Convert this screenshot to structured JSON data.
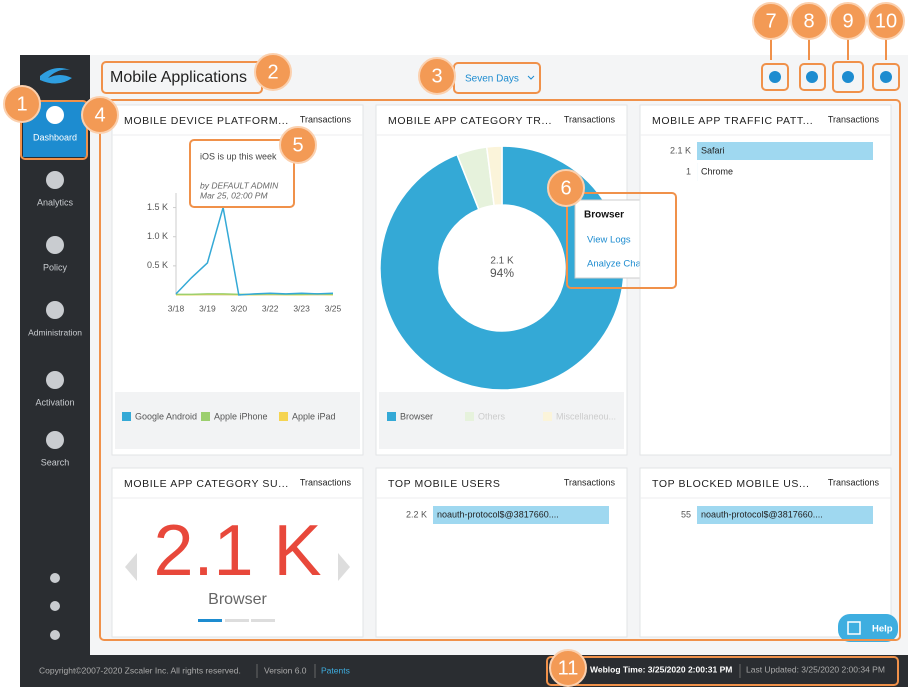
{
  "sidebar": {
    "items": [
      "Dashboard",
      "Analytics",
      "Policy",
      "Administration",
      "Activation",
      "Search"
    ]
  },
  "header": {
    "title": "Mobile Applications",
    "range": "Seven Days"
  },
  "callouts": [
    "1",
    "2",
    "3",
    "4",
    "5",
    "6",
    "7",
    "8",
    "9",
    "10",
    "11"
  ],
  "panels": [
    {
      "title": "MOBILE DEVICE PLATFORM...",
      "metric": "Transactions",
      "note": {
        "text": "iOS is up this week",
        "author": "by DEFAULT ADMIN",
        "time": "Mar 25, 02:00 PM"
      },
      "chart_data": {
        "type": "line",
        "categories": [
          "3/18",
          null,
          "3/19",
          null,
          "3/20",
          null,
          "3/22",
          null,
          "3/23",
          null,
          "3/25"
        ],
        "ylim": [
          0,
          1750
        ],
        "yticks": [
          {
            "value": 500,
            "label": "0.5 K"
          },
          {
            "value": 1000,
            "label": "1.0 K"
          },
          {
            "value": 1500,
            "label": "1.5 K"
          }
        ],
        "series": [
          {
            "name": "Google Android",
            "color": "#34a9d6",
            "values": [
              20,
              300,
              550,
              1500,
              0,
              20,
              30,
              20,
              30,
              20,
              30
            ]
          },
          {
            "name": "Apple iPhone",
            "color": "#9ccf6e",
            "values": [
              10,
              10,
              20,
              20,
              10,
              10,
              20,
              10,
              10,
              20,
              10
            ]
          },
          {
            "name": "Apple iPad",
            "color": "#f5d451",
            "values": [
              5,
              5,
              10,
              10,
              5,
              5,
              10,
              5,
              5,
              10,
              5
            ]
          }
        ]
      }
    },
    {
      "title": "MOBILE APP CATEGORY TR...",
      "metric": "Transactions",
      "chart_data": {
        "type": "donut",
        "categories": [
          "Browser",
          "Others",
          "Miscellaneou..."
        ],
        "values": [
          94,
          4,
          2
        ],
        "colors": [
          "#34a9d6",
          "#e6f2dc",
          "#fbf4da"
        ],
        "center": [
          "2.1 K",
          "94%"
        ]
      },
      "tooltip": {
        "title": "Browser",
        "actions": [
          "View Logs",
          "Analyze Chart"
        ]
      }
    },
    {
      "title": "MOBILE APP TRAFFIC PATT...",
      "metric": "Transactions",
      "chart_data": {
        "type": "hbar",
        "color": "#9fd8f0",
        "categories": [
          "Safari",
          "Chrome"
        ],
        "values": [
          2100,
          1
        ],
        "value_labels": [
          "2.1 K",
          "1"
        ]
      }
    },
    {
      "title": "MOBILE APP CATEGORY SU...",
      "metric": "Transactions",
      "summary": {
        "value": "2.1 K",
        "category": "Browser"
      }
    },
    {
      "title": "TOP MOBILE USERS",
      "metric": "Transactions",
      "chart_data": {
        "type": "hbar",
        "color": "#9fd8f0",
        "categories": [
          "noauth-protocol$@3817660...."
        ],
        "values": [
          2200
        ],
        "value_labels": [
          "2.2 K"
        ]
      }
    },
    {
      "title": "TOP BLOCKED MOBILE US...",
      "metric": "Transactions",
      "chart_data": {
        "type": "hbar",
        "color": "#9fd8f0",
        "categories": [
          "noauth-protocol$@3817660...."
        ],
        "values": [
          55
        ],
        "value_labels": [
          "55"
        ]
      }
    }
  ],
  "help": "Help",
  "footer": {
    "copyright": "Copyright©2007-2020 Zscaler Inc. All rights reserved.",
    "version": "Version 6.0",
    "patents": "Patents",
    "weblog": "Weblog Time: 3/25/2020 2:00:31 PM",
    "updated": "Last Updated: 3/25/2020 2:00:34 PM"
  }
}
